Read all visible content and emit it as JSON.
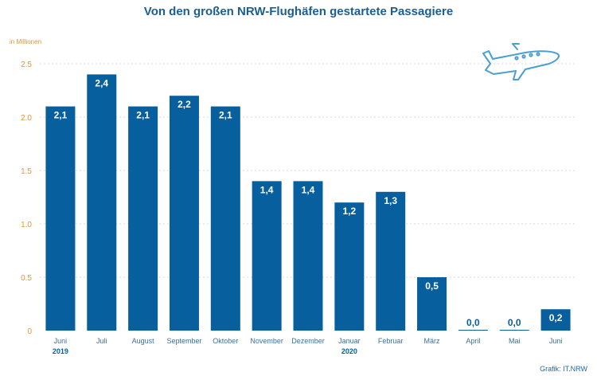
{
  "title": "Von den großen NRW-Flughäfen gestartete Passagiere",
  "source": "Grafik: IT.NRW",
  "colors": {
    "bar": "#085f9d",
    "tick_label": "#e8953a",
    "axis_text": "#3b6f9c",
    "grid": "#d9d9d9",
    "icon": "#4a9fd0"
  },
  "icon": "airplane-icon",
  "chart_data": {
    "type": "bar",
    "title": "Von den großen NRW-Flughäfen gestartete Passagiere",
    "ylabel": "in Millionen",
    "ylim": [
      0,
      2.5
    ],
    "yticks": [
      "0",
      "0.5",
      "1.0",
      "1.5",
      "2.0",
      "2.5"
    ],
    "ytick_values": [
      0,
      0.5,
      1.0,
      1.5,
      2.0,
      2.5
    ],
    "grid": true,
    "categories": [
      "Juni",
      "Juli",
      "August",
      "September",
      "Oktober",
      "November",
      "Dezember",
      "Januar",
      "Februar",
      "März",
      "April",
      "Mai",
      "Juni"
    ],
    "year_labels": [
      {
        "category_index": 0,
        "text": "2019"
      },
      {
        "category_index": 7,
        "text": "2020"
      }
    ],
    "values": [
      2.1,
      2.4,
      2.1,
      2.2,
      2.1,
      1.4,
      1.4,
      1.2,
      1.3,
      0.5,
      0.0,
      0.0,
      0.2
    ],
    "value_labels": [
      "2,1",
      "2,4",
      "2,1",
      "2,2",
      "2,1",
      "1,4",
      "1,4",
      "1,2",
      "1,3",
      "0,5",
      "0,0",
      "0,0",
      "0,2"
    ]
  }
}
